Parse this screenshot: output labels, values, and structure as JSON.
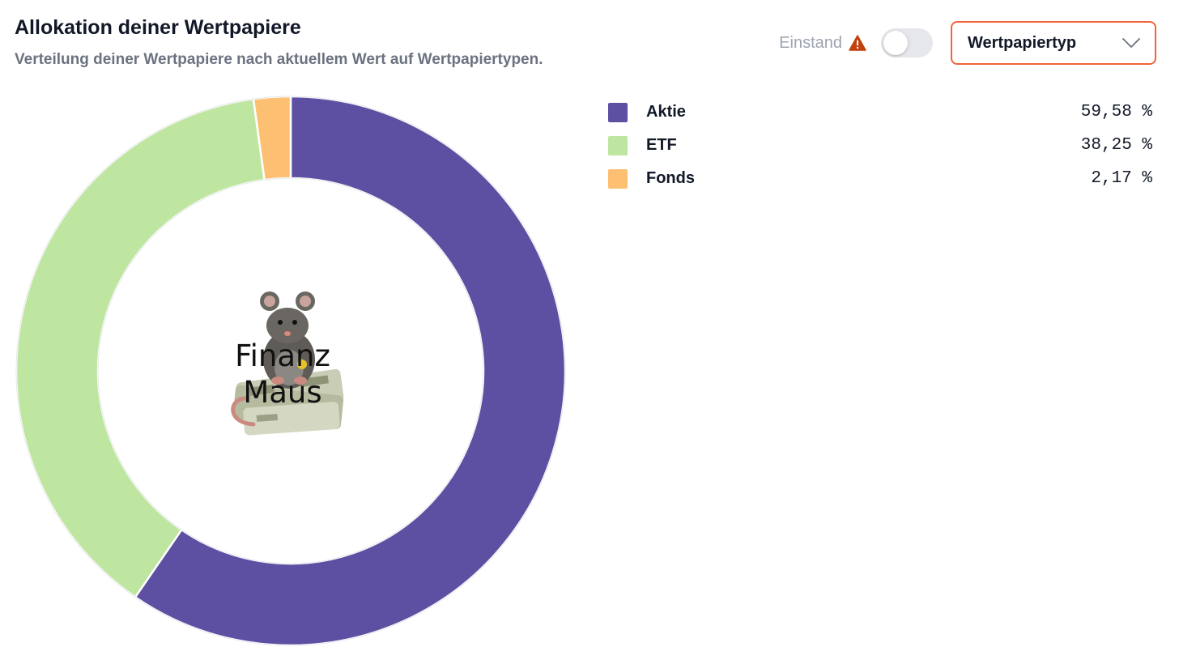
{
  "header": {
    "title": "Allokation deiner Wertpapiere",
    "subtitle": "Verteilung deiner Wertpapiere nach aktuellem Wert auf Wertpapiertypen."
  },
  "controls": {
    "einstand_label": "Einstand",
    "einstand_toggle_on": false,
    "warning_icon": "warning-triangle-icon",
    "warning_color": "#c2410c",
    "select_value": "Wertpapiertyp",
    "select_border_color": "#f0643c"
  },
  "center_logo": {
    "text_line1": "Finanz",
    "text_line2": "Maus"
  },
  "chart_data": {
    "type": "pie",
    "variant": "donut",
    "categories": [
      "Aktie",
      "ETF",
      "Fonds"
    ],
    "values": [
      59.58,
      38.25,
      2.17
    ],
    "value_labels": [
      "59,58 %",
      "38,25 %",
      "2,17 %"
    ],
    "colors": [
      "#5d4fa1",
      "#bfe6a0",
      "#fdbf71"
    ],
    "start_angle": "top",
    "direction": "clockwise",
    "legend_position": "right"
  }
}
